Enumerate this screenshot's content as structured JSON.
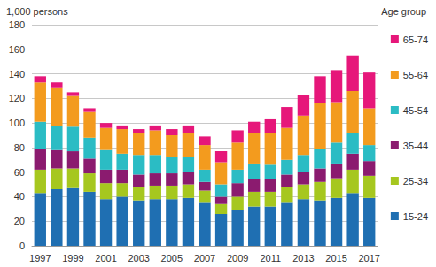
{
  "chart_data": {
    "type": "bar",
    "stacked": true,
    "grid": true,
    "legend": "right",
    "ylabel": "1,000 persons",
    "legend_title": "Age group",
    "categories": [
      "1997",
      null,
      "1999",
      null,
      "2001",
      null,
      "2003",
      null,
      "2005",
      null,
      "2007",
      null,
      "2009",
      null,
      "2011",
      null,
      "2013",
      null,
      "2015",
      null,
      "2017"
    ],
    "ylim": [
      0,
      180
    ],
    "yticks": [
      0,
      20,
      40,
      60,
      80,
      100,
      120,
      140,
      160,
      180
    ],
    "series": [
      {
        "name": "15-24",
        "color": "#1f6fb2",
        "values": [
          43,
          46,
          47,
          44,
          38,
          40,
          37,
          38,
          38,
          39,
          35,
          26,
          29,
          32,
          32,
          35,
          38,
          37,
          39,
          43,
          39
        ]
      },
      {
        "name": "25-34",
        "color": "#a6c71f",
        "values": [
          19,
          17,
          16,
          15,
          13,
          11,
          11,
          11,
          11,
          11,
          10,
          8,
          11,
          12,
          12,
          13,
          12,
          15,
          16,
          19,
          18
        ]
      },
      {
        "name": "35-44",
        "color": "#8b1b6f",
        "values": [
          17,
          15,
          14,
          12,
          11,
          11,
          10,
          10,
          10,
          10,
          7,
          6,
          11,
          10,
          10,
          10,
          10,
          11,
          12,
          13,
          12
        ]
      },
      {
        "name": "45-54",
        "color": "#2bbcc4",
        "values": [
          22,
          20,
          20,
          17,
          16,
          13,
          16,
          15,
          13,
          12,
          10,
          10,
          11,
          13,
          12,
          12,
          14,
          16,
          17,
          17,
          13
        ]
      },
      {
        "name": "55-64",
        "color": "#f39b1e",
        "values": [
          32,
          31,
          25,
          21,
          18,
          20,
          18,
          20,
          18,
          20,
          20,
          18,
          22,
          25,
          26,
          26,
          32,
          37,
          33,
          34,
          30
        ]
      },
      {
        "name": "65-74",
        "color": "#e6177a",
        "values": [
          5,
          4,
          3,
          3,
          4,
          3,
          3,
          4,
          5,
          6,
          7,
          9,
          10,
          9,
          11,
          17,
          17,
          22,
          26,
          29,
          29
        ]
      }
    ]
  }
}
